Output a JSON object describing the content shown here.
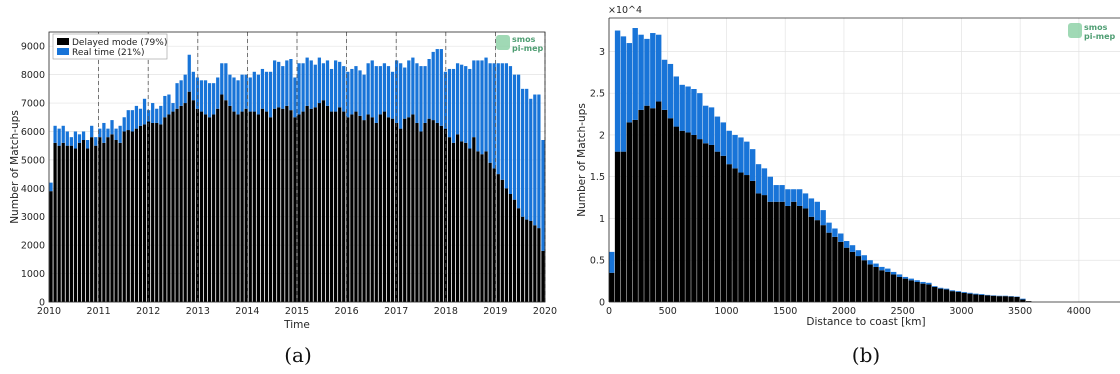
{
  "chart_data": [
    {
      "type": "bar",
      "stacked": true,
      "xlabel": "Time",
      "ylabel": "Number of Match-ups",
      "ylim": [
        0,
        9500
      ],
      "xlim": [
        2010,
        2020
      ],
      "x_ticks": [
        "2010",
        "2011",
        "2012",
        "2013",
        "2014",
        "2015",
        "2016",
        "2017",
        "2018",
        "2019",
        "2020"
      ],
      "y_ticks": [
        "0",
        "1000",
        "2000",
        "3000",
        "4000",
        "5000",
        "6000",
        "7000",
        "8000",
        "9000"
      ],
      "grid": true,
      "vertical_dashed_lines_at": [
        2011,
        2012,
        2013,
        2014,
        2015,
        2016,
        2017,
        2018,
        2019,
        2020
      ],
      "legend_position": "top-left",
      "colors": {
        "delayed": "#000000",
        "realtime": "#1874d8"
      },
      "series": [
        {
          "name": "Delayed mode (79%)",
          "values": [
            3900,
            5600,
            5500,
            5600,
            5500,
            5500,
            5400,
            5600,
            5700,
            5400,
            5800,
            5500,
            5800,
            5600,
            5800,
            5900,
            5700,
            5600,
            6000,
            6050,
            6000,
            6100,
            6200,
            6250,
            6350,
            6300,
            6300,
            6250,
            6500,
            6600,
            6700,
            6800,
            6900,
            7000,
            7400,
            7100,
            6800,
            6700,
            6600,
            6500,
            6600,
            6800,
            7300,
            7100,
            6900,
            6700,
            6600,
            6700,
            6800,
            6700,
            6700,
            6600,
            6800,
            6700,
            6500,
            6800,
            6850,
            6800,
            6900,
            6750,
            6500,
            6600,
            6700,
            6900,
            6800,
            6850,
            7000,
            7100,
            6900,
            6700,
            6700,
            6850,
            6700,
            6500,
            6600,
            6700,
            6550,
            6400,
            6600,
            6500,
            6300,
            6600,
            6700,
            6500,
            6450,
            6300,
            6100,
            6450,
            6500,
            6600,
            6300,
            6000,
            6300,
            6450,
            6400,
            6300,
            6200,
            6100,
            5800,
            5600,
            5900,
            5650,
            5600,
            5400,
            5800,
            5300,
            5200,
            5300,
            4900,
            4700,
            4500,
            4300,
            4000,
            3800,
            3600,
            3300,
            3000,
            2900,
            2850,
            2700,
            2600,
            1800
          ]
        },
        {
          "name": "Real time (21%)",
          "values": [
            300,
            600,
            600,
            600,
            500,
            300,
            600,
            300,
            300,
            300,
            400,
            300,
            300,
            700,
            300,
            500,
            400,
            600,
            500,
            700,
            750,
            800,
            600,
            900,
            400,
            700,
            500,
            650,
            750,
            700,
            300,
            900,
            900,
            1000,
            1300,
            1000,
            1100,
            1100,
            1200,
            1200,
            1100,
            1100,
            1100,
            1300,
            1100,
            1200,
            1200,
            1300,
            1200,
            1200,
            1400,
            1400,
            1400,
            1400,
            1600,
            1700,
            1600,
            1500,
            1600,
            1800,
            1400,
            1800,
            1700,
            1700,
            1700,
            1500,
            1600,
            1300,
            1600,
            1500,
            1800,
            1600,
            1600,
            1600,
            1600,
            1600,
            1600,
            1600,
            1800,
            2000,
            2000,
            1700,
            1700,
            1800,
            1650,
            2200,
            2300,
            1800,
            2000,
            2000,
            2100,
            2300,
            2000,
            2100,
            2400,
            2600,
            2700,
            2000,
            2400,
            2600,
            2500,
            2700,
            2700,
            2800,
            2700,
            3200,
            3300,
            3300,
            3500,
            3700,
            3900,
            4100,
            4400,
            4500,
            4400,
            4700,
            4500,
            4600,
            4300,
            4600,
            4700,
            3900
          ]
        }
      ]
    },
    {
      "type": "bar",
      "stacked": true,
      "xlabel": "Distance to coast [km]",
      "ylabel": "Number of Match-ups",
      "y_multiplier": "×10^4",
      "ylim": [
        0,
        3.4
      ],
      "xlim": [
        0,
        4350
      ],
      "x_ticks": [
        "0",
        "500",
        "1000",
        "1500",
        "2000",
        "2500",
        "3000",
        "3500",
        "4000"
      ],
      "y_ticks": [
        "0",
        "0.5",
        "1",
        "1.5",
        "2",
        "2.5",
        "3"
      ],
      "bin_width_km": 50,
      "grid": true,
      "colors": {
        "lower": "#000000",
        "upper": "#1874d8"
      },
      "series": [
        {
          "values": [
            0.35,
            1.8,
            1.8,
            2.15,
            2.18,
            2.3,
            2.35,
            2.32,
            2.4,
            2.3,
            2.2,
            2.1,
            2.05,
            2.03,
            2.0,
            1.95,
            1.9,
            1.88,
            1.8,
            1.75,
            1.65,
            1.6,
            1.55,
            1.52,
            1.45,
            1.3,
            1.28,
            1.2,
            1.2,
            1.2,
            1.15,
            1.2,
            1.15,
            1.12,
            1.02,
            0.98,
            0.92,
            0.83,
            0.78,
            0.72,
            0.65,
            0.6,
            0.55,
            0.5,
            0.45,
            0.42,
            0.38,
            0.36,
            0.33,
            0.3,
            0.28,
            0.26,
            0.24,
            0.22,
            0.21,
            0.18,
            0.16,
            0.15,
            0.13,
            0.12,
            0.11,
            0.1,
            0.09,
            0.085,
            0.08,
            0.075,
            0.07,
            0.07,
            0.065,
            0.06,
            0.03,
            0.01
          ]
        },
        {
          "values": [
            0.25,
            1.45,
            1.38,
            0.95,
            1.1,
            0.9,
            0.8,
            0.9,
            0.8,
            0.6,
            0.65,
            0.6,
            0.55,
            0.55,
            0.55,
            0.55,
            0.45,
            0.45,
            0.42,
            0.4,
            0.4,
            0.4,
            0.42,
            0.4,
            0.38,
            0.35,
            0.32,
            0.3,
            0.2,
            0.2,
            0.2,
            0.15,
            0.2,
            0.18,
            0.22,
            0.22,
            0.18,
            0.12,
            0.1,
            0.1,
            0.08,
            0.08,
            0.07,
            0.06,
            0.05,
            0.04,
            0.04,
            0.04,
            0.03,
            0.03,
            0.02,
            0.02,
            0.02,
            0.02,
            0.02,
            0.01,
            0.01,
            0.01,
            0.01,
            0.01,
            0.01,
            0.01,
            0.01,
            0.01,
            0.005,
            0.005,
            0.005,
            0.005,
            0.005,
            0.005,
            0.01,
            0.0
          ]
        }
      ]
    }
  ],
  "captions": [
    "(a)",
    "(b)"
  ],
  "logo_text": [
    "smos",
    "pi-mep"
  ]
}
